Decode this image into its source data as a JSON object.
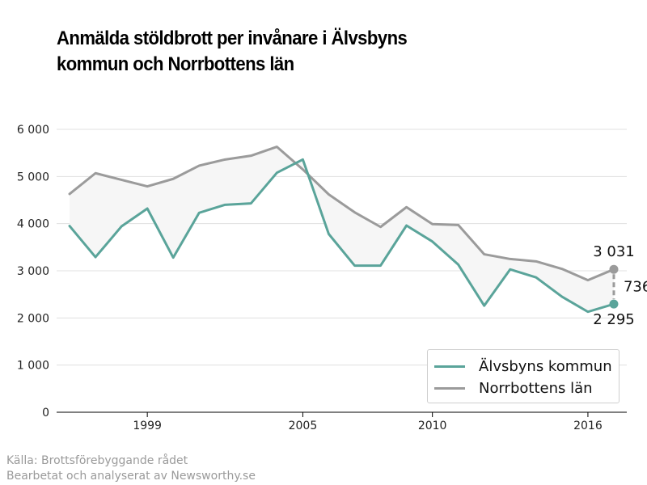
{
  "header": {
    "title_line1": "Anmälda stöldbrott per invånare i Älvsbyns",
    "title_line2": "kommun och Norrbottens län"
  },
  "footer": {
    "source": "Källa: Brottsförebyggande rådet",
    "processed_by": "Bearbetat och analyserat av Newsworthy.se"
  },
  "colors": {
    "alvsbyn": "#5aa49a",
    "norrbotten": "#9b9b9b",
    "fill": "#f6f6f6",
    "grid": "#e0e0e0"
  },
  "legend": {
    "items": [
      {
        "label": "Älvsbyns kommun",
        "color": "#5aa49a"
      },
      {
        "label": "Norrbottens län",
        "color": "#9b9b9b"
      }
    ]
  },
  "chart_data": {
    "type": "line",
    "title": "Anmälda stöldbrott per invånare i Älvsbyns kommun och Norrbottens län",
    "xlabel": "",
    "ylabel": "",
    "x": [
      1996,
      1997,
      1998,
      1999,
      2000,
      2001,
      2002,
      2003,
      2004,
      2005,
      2006,
      2007,
      2008,
      2009,
      2010,
      2011,
      2012,
      2013,
      2014,
      2015,
      2016,
      2017
    ],
    "xticks": [
      1999,
      2005,
      2010,
      2016
    ],
    "xlim": [
      1995.5,
      2017.5
    ],
    "yticks": [
      0,
      1000,
      2000,
      3000,
      4000,
      5000,
      6000
    ],
    "ytick_labels": [
      "0",
      "1 000",
      "2 000",
      "3 000",
      "4 000",
      "5 000",
      "6 000"
    ],
    "ylim": [
      0,
      6000
    ],
    "grid": true,
    "legend_position": "bottom-right",
    "series": [
      {
        "name": "Älvsbyns kommun",
        "values": [
          3950,
          3290,
          3940,
          4320,
          3280,
          4230,
          4400,
          4430,
          5080,
          5360,
          3780,
          3110,
          3110,
          3960,
          3620,
          3130,
          2260,
          3030,
          2860,
          2450,
          2130,
          2295
        ]
      },
      {
        "name": "Norrbottens län",
        "values": [
          4630,
          5070,
          4930,
          4790,
          4950,
          5230,
          5360,
          5440,
          5630,
          5150,
          4620,
          4240,
          3930,
          4350,
          3990,
          3970,
          3350,
          3250,
          3200,
          3040,
          2800,
          3031
        ]
      }
    ],
    "annotations": {
      "last_norrbotten": "3 031",
      "last_alvsbyn": "2 295",
      "difference": "736"
    }
  }
}
